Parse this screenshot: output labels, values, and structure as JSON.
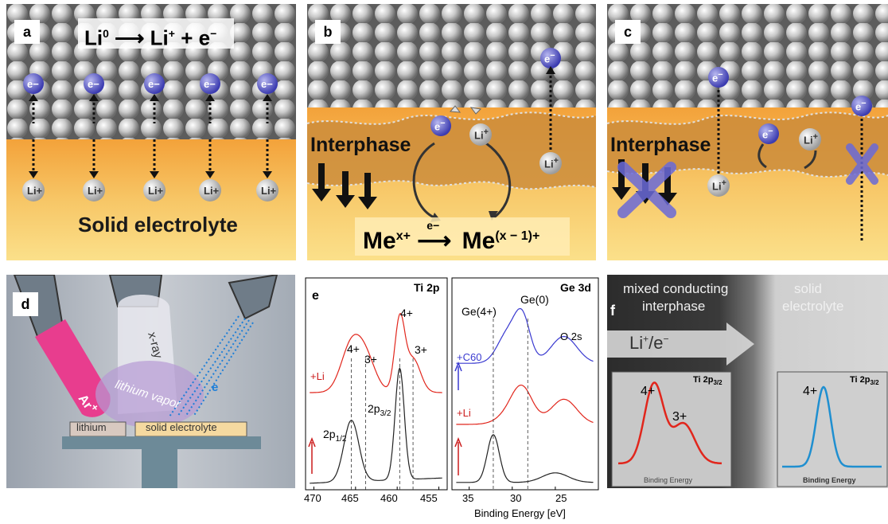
{
  "panel_a": {
    "label": "a",
    "equation": {
      "left": "Li",
      "left_sup": "0",
      "right": "Li",
      "right_sup": "+",
      "plus": "+ e",
      "e_sup": "−"
    },
    "electron": "e",
    "electron_sup": "−",
    "ion": "Li",
    "ion_sup": "+",
    "caption": "Solid electrolyte"
  },
  "panel_b": {
    "label": "b",
    "interphase": "Interphase",
    "electron": "e",
    "electron_sup": "−",
    "ion": "Li",
    "ion_sup": "+",
    "reaction": {
      "left": "Me",
      "left_sup": "x+",
      "over_arrow": "e−",
      "right": "Me",
      "right_sup": "(x − 1)+"
    }
  },
  "panel_c": {
    "label": "c",
    "interphase": "Interphase",
    "electron": "e",
    "electron_sup": "−",
    "ion": "Li",
    "ion_sup": "+"
  },
  "panel_d": {
    "label": "d",
    "xray": "x-ray",
    "argon": "Ar",
    "argon_sup": "+",
    "vapor": "lithium vapor",
    "electron": "e",
    "lithium": "lithium",
    "solid_electrolyte": "solid electrolyte"
  },
  "panel_e": {
    "label": "e",
    "left_title": "Ti 2p",
    "right_title": "Ge 3d",
    "x_axis_label": "Binding Energy [eV]",
    "left_ticks": [
      "470",
      "465",
      "460",
      "455"
    ],
    "right_ticks": [
      "35",
      "30",
      "25"
    ],
    "left_annotations": {
      "p4_left": "4+",
      "p3_left": "3+",
      "p4_right": "4+",
      "p3_right": "3+",
      "plus_li": "+Li",
      "p12": "2p",
      "p12_sub": "1/2",
      "p32": "2p",
      "p32_sub": "3/2"
    },
    "right_annotations": {
      "ge4": "Ge(4+)",
      "ge0": "Ge(0)",
      "o2s": "O 2s",
      "plus_c60": "+C60",
      "plus_li": "+Li"
    }
  },
  "panel_f": {
    "label": "f",
    "title_line1": "mixed conducting",
    "title_line2": "interphase",
    "right_title_1": "solid",
    "right_title_2": "electrolyte",
    "arrow_text": "Li",
    "arrow_sup": "+",
    "arrow_tail": "/e",
    "arrow_tail_sup": "−",
    "inset_left_title": "Ti 2p",
    "inset_left_sub": "3/2",
    "inset_right_title": "Ti 2p",
    "inset_right_sub": "3/2",
    "inset_left_p4": "4+",
    "inset_left_p3": "3+",
    "inset_right_p4": "4+",
    "inset_xlabel": "Binding Energy"
  },
  "colors": {
    "red_curve": "#e1261c",
    "blue_curve": "#1f8fd0",
    "black_curve": "#222222",
    "purple_curve": "#3a3ad0",
    "ti_red": "#cc1c1c"
  }
}
